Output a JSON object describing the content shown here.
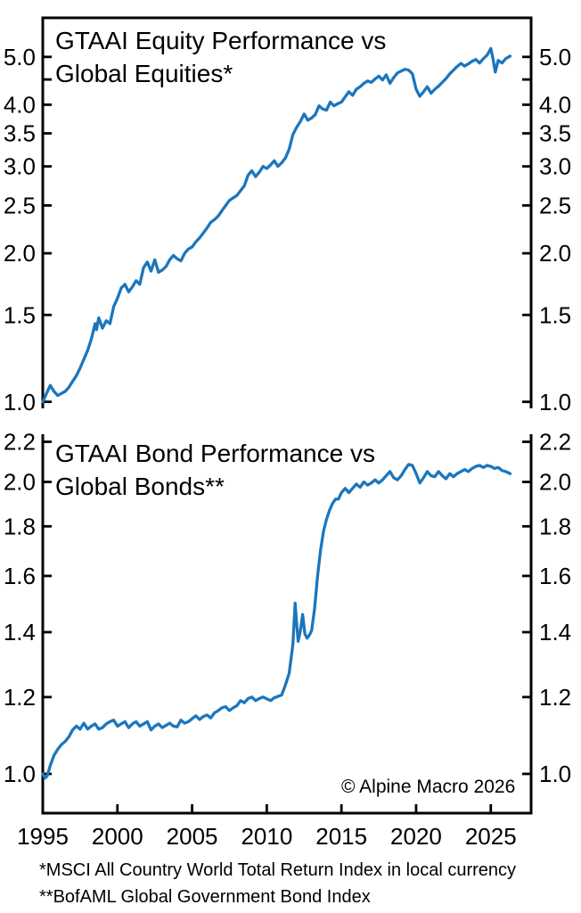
{
  "copyright": "© Alpine Macro 2026",
  "footnotes": [
    "*MSCI All Country World Total Return Index in local currency",
    "**BofAML Global Government Bond Index"
  ],
  "xticks": [
    1995,
    2000,
    2005,
    2010,
    2015,
    2020,
    2025
  ],
  "line_color": "#1b76bd",
  "chart_data": [
    {
      "type": "line",
      "title": "GTAAI Equity Performance vs\nGlobal Equities*",
      "xlabel": "",
      "ylabel": "",
      "yscale": "log",
      "grid": false,
      "tick_direction": "in",
      "xlim": [
        1995,
        2027.7
      ],
      "ylim": [
        0.97,
        6.0
      ],
      "yticks": [
        5.0,
        4.0,
        3.5,
        3.0,
        2.5,
        2.0,
        1.5,
        1.0
      ],
      "yticks_minor": [
        4.5
      ],
      "series": [
        {
          "name": "GTAAI Equity Performance vs Global Equities*",
          "points": [
            [
              1995.0,
              1.0
            ],
            [
              1995.25,
              1.04
            ],
            [
              1995.5,
              1.08
            ],
            [
              1995.75,
              1.05
            ],
            [
              1996.0,
              1.03
            ],
            [
              1996.25,
              1.04
            ],
            [
              1996.5,
              1.05
            ],
            [
              1996.75,
              1.07
            ],
            [
              1997.0,
              1.1
            ],
            [
              1997.25,
              1.13
            ],
            [
              1997.5,
              1.17
            ],
            [
              1997.75,
              1.22
            ],
            [
              1998.0,
              1.27
            ],
            [
              1998.25,
              1.34
            ],
            [
              1998.5,
              1.44
            ],
            [
              1998.6,
              1.4
            ],
            [
              1998.75,
              1.48
            ],
            [
              1999.0,
              1.41
            ],
            [
              1999.25,
              1.46
            ],
            [
              1999.5,
              1.44
            ],
            [
              1999.75,
              1.56
            ],
            [
              2000.0,
              1.62
            ],
            [
              2000.25,
              1.7
            ],
            [
              2000.5,
              1.73
            ],
            [
              2000.75,
              1.67
            ],
            [
              2001.0,
              1.71
            ],
            [
              2001.25,
              1.76
            ],
            [
              2001.5,
              1.73
            ],
            [
              2001.75,
              1.87
            ],
            [
              2002.0,
              1.92
            ],
            [
              2002.25,
              1.84
            ],
            [
              2002.5,
              1.94
            ],
            [
              2002.75,
              1.83
            ],
            [
              2003.0,
              1.85
            ],
            [
              2003.25,
              1.88
            ],
            [
              2003.5,
              1.94
            ],
            [
              2003.75,
              1.98
            ],
            [
              2004.0,
              1.95
            ],
            [
              2004.25,
              1.93
            ],
            [
              2004.5,
              2.0
            ],
            [
              2004.75,
              2.04
            ],
            [
              2005.0,
              2.06
            ],
            [
              2005.25,
              2.11
            ],
            [
              2005.5,
              2.15
            ],
            [
              2005.75,
              2.2
            ],
            [
              2006.0,
              2.25
            ],
            [
              2006.25,
              2.31
            ],
            [
              2006.5,
              2.34
            ],
            [
              2006.75,
              2.38
            ],
            [
              2007.0,
              2.44
            ],
            [
              2007.25,
              2.5
            ],
            [
              2007.5,
              2.56
            ],
            [
              2007.75,
              2.59
            ],
            [
              2008.0,
              2.62
            ],
            [
              2008.25,
              2.68
            ],
            [
              2008.5,
              2.74
            ],
            [
              2008.75,
              2.88
            ],
            [
              2009.0,
              2.94
            ],
            [
              2009.25,
              2.86
            ],
            [
              2009.5,
              2.92
            ],
            [
              2009.75,
              3.0
            ],
            [
              2010.0,
              2.97
            ],
            [
              2010.25,
              3.02
            ],
            [
              2010.5,
              3.08
            ],
            [
              2010.75,
              3.0
            ],
            [
              2011.0,
              3.05
            ],
            [
              2011.25,
              3.12
            ],
            [
              2011.5,
              3.25
            ],
            [
              2011.75,
              3.48
            ],
            [
              2012.0,
              3.6
            ],
            [
              2012.25,
              3.7
            ],
            [
              2012.5,
              3.83
            ],
            [
              2012.75,
              3.72
            ],
            [
              2013.0,
              3.76
            ],
            [
              2013.25,
              3.82
            ],
            [
              2013.5,
              3.98
            ],
            [
              2013.75,
              3.92
            ],
            [
              2014.0,
              3.9
            ],
            [
              2014.25,
              4.05
            ],
            [
              2014.5,
              3.98
            ],
            [
              2014.75,
              4.02
            ],
            [
              2015.0,
              4.05
            ],
            [
              2015.25,
              4.15
            ],
            [
              2015.5,
              4.25
            ],
            [
              2015.75,
              4.18
            ],
            [
              2016.0,
              4.3
            ],
            [
              2016.25,
              4.35
            ],
            [
              2016.5,
              4.42
            ],
            [
              2016.75,
              4.47
            ],
            [
              2017.0,
              4.44
            ],
            [
              2017.25,
              4.51
            ],
            [
              2017.5,
              4.57
            ],
            [
              2017.75,
              4.49
            ],
            [
              2018.0,
              4.6
            ],
            [
              2018.25,
              4.42
            ],
            [
              2018.5,
              4.54
            ],
            [
              2018.75,
              4.64
            ],
            [
              2019.0,
              4.68
            ],
            [
              2019.25,
              4.72
            ],
            [
              2019.5,
              4.7
            ],
            [
              2019.75,
              4.62
            ],
            [
              2020.0,
              4.3
            ],
            [
              2020.25,
              4.16
            ],
            [
              2020.5,
              4.25
            ],
            [
              2020.75,
              4.35
            ],
            [
              2021.0,
              4.22
            ],
            [
              2021.25,
              4.3
            ],
            [
              2021.5,
              4.36
            ],
            [
              2021.75,
              4.44
            ],
            [
              2022.0,
              4.52
            ],
            [
              2022.25,
              4.62
            ],
            [
              2022.5,
              4.7
            ],
            [
              2022.75,
              4.78
            ],
            [
              2023.0,
              4.85
            ],
            [
              2023.25,
              4.79
            ],
            [
              2023.5,
              4.84
            ],
            [
              2023.75,
              4.9
            ],
            [
              2024.0,
              4.94
            ],
            [
              2024.25,
              4.86
            ],
            [
              2024.5,
              4.96
            ],
            [
              2024.75,
              5.04
            ],
            [
              2025.0,
              5.2
            ],
            [
              2025.15,
              4.95
            ],
            [
              2025.3,
              4.66
            ],
            [
              2025.5,
              4.92
            ],
            [
              2025.75,
              4.86
            ],
            [
              2026.0,
              4.96
            ],
            [
              2026.3,
              5.02
            ]
          ]
        }
      ]
    },
    {
      "type": "line",
      "title": "GTAAI Bond Performance vs\nGlobal Bonds**",
      "xlabel": "",
      "ylabel": "",
      "yscale": "log",
      "grid": false,
      "tick_direction": "in",
      "xlim": [
        1995,
        2027.7
      ],
      "ylim": [
        0.911,
        2.24
      ],
      "yticks": [
        2.2,
        2.0,
        1.8,
        1.6,
        1.4,
        1.2,
        1.0
      ],
      "yticks_minor": [],
      "series": [
        {
          "name": "GTAAI Bond Performance vs Global Bonds**",
          "points": [
            [
              1995.0,
              1.0
            ],
            [
              1995.15,
              0.99
            ],
            [
              1995.3,
              0.995
            ],
            [
              1995.5,
              1.02
            ],
            [
              1995.75,
              1.045
            ],
            [
              1996.0,
              1.06
            ],
            [
              1996.25,
              1.072
            ],
            [
              1996.5,
              1.08
            ],
            [
              1996.75,
              1.092
            ],
            [
              1997.0,
              1.11
            ],
            [
              1997.25,
              1.12
            ],
            [
              1997.5,
              1.112
            ],
            [
              1997.75,
              1.128
            ],
            [
              1998.0,
              1.112
            ],
            [
              1998.25,
              1.12
            ],
            [
              1998.5,
              1.126
            ],
            [
              1998.75,
              1.112
            ],
            [
              1999.0,
              1.116
            ],
            [
              1999.25,
              1.126
            ],
            [
              1999.5,
              1.132
            ],
            [
              1999.75,
              1.136
            ],
            [
              2000.0,
              1.12
            ],
            [
              2000.25,
              1.126
            ],
            [
              2000.5,
              1.132
            ],
            [
              2000.75,
              1.116
            ],
            [
              2001.0,
              1.126
            ],
            [
              2001.25,
              1.132
            ],
            [
              2001.5,
              1.12
            ],
            [
              2001.75,
              1.126
            ],
            [
              2002.0,
              1.132
            ],
            [
              2002.25,
              1.11
            ],
            [
              2002.5,
              1.12
            ],
            [
              2002.75,
              1.126
            ],
            [
              2003.0,
              1.116
            ],
            [
              2003.25,
              1.122
            ],
            [
              2003.5,
              1.128
            ],
            [
              2003.75,
              1.12
            ],
            [
              2004.0,
              1.118
            ],
            [
              2004.25,
              1.136
            ],
            [
              2004.5,
              1.128
            ],
            [
              2004.75,
              1.132
            ],
            [
              2005.0,
              1.14
            ],
            [
              2005.25,
              1.148
            ],
            [
              2005.5,
              1.138
            ],
            [
              2005.75,
              1.146
            ],
            [
              2006.0,
              1.15
            ],
            [
              2006.25,
              1.142
            ],
            [
              2006.5,
              1.156
            ],
            [
              2006.75,
              1.162
            ],
            [
              2007.0,
              1.17
            ],
            [
              2007.25,
              1.173
            ],
            [
              2007.5,
              1.162
            ],
            [
              2007.75,
              1.17
            ],
            [
              2008.0,
              1.176
            ],
            [
              2008.25,
              1.19
            ],
            [
              2008.5,
              1.184
            ],
            [
              2008.75,
              1.196
            ],
            [
              2009.0,
              1.2
            ],
            [
              2009.25,
              1.19
            ],
            [
              2009.5,
              1.196
            ],
            [
              2009.75,
              1.2
            ],
            [
              2010.0,
              1.195
            ],
            [
              2010.25,
              1.19
            ],
            [
              2010.5,
              1.198
            ],
            [
              2010.75,
              1.202
            ],
            [
              2011.0,
              1.206
            ],
            [
              2011.25,
              1.235
            ],
            [
              2011.5,
              1.27
            ],
            [
              2011.75,
              1.36
            ],
            [
              2011.9,
              1.5
            ],
            [
              2012.0,
              1.43
            ],
            [
              2012.1,
              1.37
            ],
            [
              2012.25,
              1.405
            ],
            [
              2012.4,
              1.46
            ],
            [
              2012.55,
              1.395
            ],
            [
              2012.7,
              1.38
            ],
            [
              2012.85,
              1.39
            ],
            [
              2013.0,
              1.405
            ],
            [
              2013.2,
              1.48
            ],
            [
              2013.4,
              1.6
            ],
            [
              2013.6,
              1.7
            ],
            [
              2013.8,
              1.78
            ],
            [
              2014.0,
              1.83
            ],
            [
              2014.2,
              1.87
            ],
            [
              2014.4,
              1.9
            ],
            [
              2014.6,
              1.92
            ],
            [
              2014.8,
              1.92
            ],
            [
              2015.0,
              1.95
            ],
            [
              2015.25,
              1.97
            ],
            [
              2015.5,
              1.95
            ],
            [
              2015.75,
              1.97
            ],
            [
              2016.0,
              1.99
            ],
            [
              2016.25,
              1.975
            ],
            [
              2016.5,
              2.0
            ],
            [
              2016.75,
              1.985
            ],
            [
              2017.0,
              1.995
            ],
            [
              2017.25,
              2.01
            ],
            [
              2017.5,
              1.995
            ],
            [
              2017.75,
              2.01
            ],
            [
              2018.0,
              2.03
            ],
            [
              2018.25,
              2.05
            ],
            [
              2018.5,
              2.02
            ],
            [
              2018.75,
              2.01
            ],
            [
              2019.0,
              2.03
            ],
            [
              2019.25,
              2.06
            ],
            [
              2019.5,
              2.085
            ],
            [
              2019.75,
              2.08
            ],
            [
              2020.0,
              2.04
            ],
            [
              2020.25,
              1.995
            ],
            [
              2020.5,
              2.02
            ],
            [
              2020.75,
              2.05
            ],
            [
              2021.0,
              2.03
            ],
            [
              2021.25,
              2.025
            ],
            [
              2021.5,
              2.05
            ],
            [
              2021.75,
              2.03
            ],
            [
              2022.0,
              2.015
            ],
            [
              2022.25,
              2.04
            ],
            [
              2022.5,
              2.025
            ],
            [
              2022.75,
              2.04
            ],
            [
              2023.0,
              2.05
            ],
            [
              2023.25,
              2.06
            ],
            [
              2023.5,
              2.05
            ],
            [
              2023.75,
              2.065
            ],
            [
              2024.0,
              2.075
            ],
            [
              2024.25,
              2.08
            ],
            [
              2024.5,
              2.07
            ],
            [
              2024.75,
              2.08
            ],
            [
              2025.0,
              2.075
            ],
            [
              2025.25,
              2.065
            ],
            [
              2025.5,
              2.07
            ],
            [
              2025.75,
              2.055
            ],
            [
              2026.0,
              2.05
            ],
            [
              2026.3,
              2.04
            ]
          ]
        }
      ]
    }
  ]
}
